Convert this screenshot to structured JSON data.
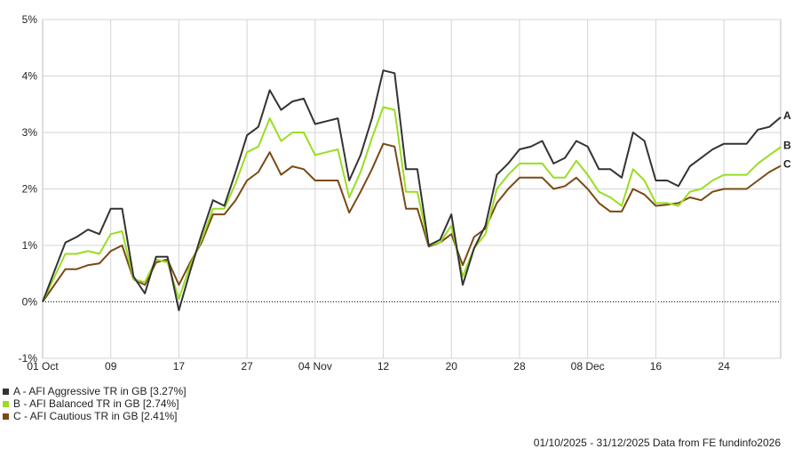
{
  "chart_data": {
    "type": "line",
    "ylim": [
      -1,
      5
    ],
    "y_ticks": [
      -1,
      0,
      1,
      2,
      3,
      4,
      5
    ],
    "y_tick_labels": [
      "-1%",
      "0%",
      "1%",
      "2%",
      "3%",
      "4%",
      "5%"
    ],
    "x_ticks": [
      0,
      6,
      12,
      18,
      24,
      30,
      36,
      42,
      48,
      54,
      60
    ],
    "x_tick_labels": [
      "01 Oct",
      "09",
      "17",
      "27",
      "04 Nov",
      "12",
      "20",
      "28",
      "08 Dec",
      "16",
      "24"
    ],
    "xlim": [
      0,
      65
    ],
    "grid": true,
    "zero_line": "dotted",
    "series": [
      {
        "name": "A - AFI Aggressive TR in GB [3.27%]",
        "tag": "A",
        "color": "#333333",
        "x": [
          0,
          2,
          3,
          4,
          5,
          6,
          7,
          8,
          9,
          10,
          11,
          12,
          13,
          14,
          15,
          16,
          17,
          18,
          19,
          20,
          21,
          22,
          23,
          24,
          25,
          26,
          27,
          28,
          29,
          30,
          31,
          32,
          33,
          34,
          35,
          36,
          37,
          38,
          39,
          40,
          41,
          42,
          43,
          44,
          45,
          46,
          47,
          48,
          49,
          50,
          51,
          52,
          53,
          54,
          55,
          56,
          57,
          58,
          59,
          60,
          61,
          62,
          63,
          64,
          65
        ],
        "y": [
          0,
          1.05,
          1.15,
          1.28,
          1.2,
          1.65,
          1.65,
          0.45,
          0.15,
          0.8,
          0.8,
          -0.15,
          0.55,
          1.2,
          1.8,
          1.7,
          2.3,
          2.95,
          3.1,
          3.75,
          3.4,
          3.55,
          3.6,
          3.15,
          3.2,
          3.25,
          2.15,
          2.6,
          3.25,
          4.1,
          4.05,
          2.35,
          2.35,
          1.0,
          1.1,
          1.55,
          0.3,
          0.95,
          1.35,
          2.25,
          2.45,
          2.7,
          2.75,
          2.85,
          2.45,
          2.55,
          2.85,
          2.75,
          2.35,
          2.35,
          2.2,
          3.0,
          2.85,
          2.15,
          2.15,
          2.05,
          2.4,
          2.55,
          2.7,
          2.8,
          2.8,
          2.8,
          3.05,
          3.1,
          3.27
        ]
      },
      {
        "name": "B - AFI Balanced TR in GB [2.74%]",
        "tag": "B",
        "color": "#99dd22",
        "x": [
          0,
          2,
          3,
          4,
          5,
          6,
          7,
          8,
          9,
          10,
          11,
          12,
          13,
          14,
          15,
          16,
          17,
          18,
          19,
          20,
          21,
          22,
          23,
          24,
          25,
          26,
          27,
          28,
          29,
          30,
          31,
          32,
          33,
          34,
          35,
          36,
          37,
          38,
          39,
          40,
          41,
          42,
          43,
          44,
          45,
          46,
          47,
          48,
          49,
          50,
          51,
          52,
          53,
          54,
          55,
          56,
          57,
          58,
          59,
          60,
          61,
          62,
          63,
          64,
          65
        ],
        "y": [
          0,
          0.85,
          0.85,
          0.9,
          0.85,
          1.2,
          1.25,
          0.4,
          0.35,
          0.75,
          0.7,
          0.05,
          0.65,
          1.1,
          1.65,
          1.65,
          2.1,
          2.65,
          2.75,
          3.25,
          2.85,
          3.0,
          3.0,
          2.6,
          2.65,
          2.7,
          1.85,
          2.3,
          2.9,
          3.45,
          3.4,
          1.95,
          1.95,
          1.0,
          1.05,
          1.35,
          0.45,
          0.95,
          1.2,
          2.0,
          2.25,
          2.45,
          2.45,
          2.45,
          2.2,
          2.2,
          2.5,
          2.25,
          1.95,
          1.85,
          1.7,
          2.35,
          2.15,
          1.75,
          1.75,
          1.7,
          1.95,
          2.0,
          2.15,
          2.25,
          2.25,
          2.25,
          2.45,
          2.6,
          2.74
        ]
      },
      {
        "name": "C - AFI Cautious TR in GB [2.41%]",
        "tag": "C",
        "color": "#7a4a14",
        "x": [
          0,
          2,
          3,
          4,
          5,
          6,
          7,
          8,
          9,
          10,
          11,
          12,
          13,
          14,
          15,
          16,
          17,
          18,
          19,
          20,
          21,
          22,
          23,
          24,
          25,
          26,
          27,
          28,
          29,
          30,
          31,
          32,
          33,
          34,
          35,
          36,
          37,
          38,
          39,
          40,
          41,
          42,
          43,
          44,
          45,
          46,
          47,
          48,
          49,
          50,
          51,
          52,
          53,
          54,
          55,
          56,
          57,
          58,
          59,
          60,
          61,
          62,
          63,
          64,
          65
        ],
        "y": [
          0,
          0.58,
          0.58,
          0.65,
          0.68,
          0.9,
          1.0,
          0.4,
          0.3,
          0.7,
          0.75,
          0.3,
          0.7,
          1.05,
          1.55,
          1.55,
          1.8,
          2.15,
          2.3,
          2.65,
          2.25,
          2.4,
          2.35,
          2.15,
          2.15,
          2.15,
          1.58,
          1.95,
          2.35,
          2.8,
          2.75,
          1.65,
          1.65,
          0.98,
          1.05,
          1.2,
          0.65,
          1.15,
          1.3,
          1.75,
          2.0,
          2.2,
          2.2,
          2.2,
          2.0,
          2.05,
          2.2,
          2.0,
          1.75,
          1.6,
          1.6,
          2.0,
          1.9,
          1.7,
          1.72,
          1.75,
          1.85,
          1.8,
          1.95,
          2.0,
          2.0,
          2.0,
          2.15,
          2.3,
          2.41
        ]
      }
    ]
  },
  "legend": {
    "items": [
      {
        "label": "A - AFI Aggressive TR in GB [3.27%]",
        "color": "#333333"
      },
      {
        "label": "B - AFI Balanced TR in GB [2.74%]",
        "color": "#99dd22"
      },
      {
        "label": "C - AFI Cautious TR in GB [2.41%]",
        "color": "#7a4a14"
      }
    ]
  },
  "footer": {
    "text": "01/10/2025 - 31/12/2025 Data from FE fundinfo2026"
  }
}
